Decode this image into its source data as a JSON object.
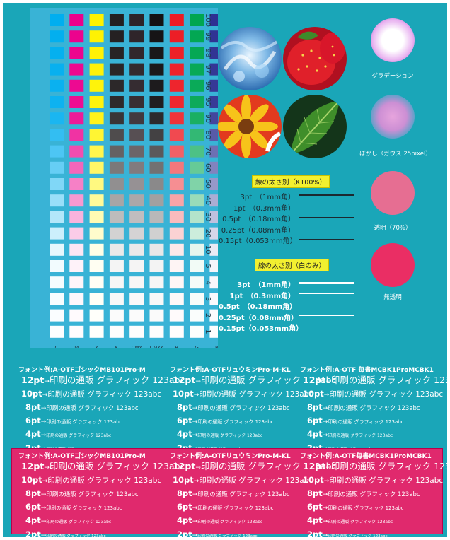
{
  "colors": {
    "background": "#1aa6b8",
    "chart_panel": "#39b3d6",
    "magenta_box": "#e0296d",
    "highlight_yellow": "#f2f030"
  },
  "swatch_chart": {
    "columns": [
      "C",
      "M",
      "Y",
      "K",
      "CMY",
      "CMYK",
      "R",
      "G",
      "B"
    ],
    "percentages": [
      "100",
      "99",
      "98",
      "97",
      "96",
      "95",
      "90",
      "80",
      "70",
      "60",
      "50",
      "40",
      "30",
      "20",
      "10",
      "5",
      "4",
      "3",
      "2",
      "1"
    ]
  },
  "photos": [
    {
      "icon": "water-splash-photo"
    },
    {
      "icon": "strawberry-photo"
    },
    {
      "icon": "daisy-flower-photo"
    },
    {
      "icon": "green-leaf-photo"
    }
  ],
  "effects": [
    {
      "label": "グラデーション"
    },
    {
      "label": "ぼかし（ガウス 25pixel）"
    },
    {
      "label": "透明（70%）"
    },
    {
      "label": "無透明"
    }
  ],
  "line_widths_k": {
    "title": "線の太さ別（K100%）",
    "rows": [
      {
        "label": "3pt　（1mm角）",
        "width_pt": 3
      },
      {
        "label": "1pt　（0.3mm角）",
        "width_pt": 1
      },
      {
        "label": "0.5pt　（0.18mm角）",
        "width_pt": 0.5
      },
      {
        "label": "0.25pt（0.08mm角）",
        "width_pt": 0.25
      },
      {
        "label": "0.15pt（0.053mm角）",
        "width_pt": 0.15
      }
    ]
  },
  "line_widths_white": {
    "title": "線の太さ別（白のみ）",
    "rows": [
      {
        "label": "3pt　（1mm角）",
        "width_pt": 3
      },
      {
        "label": "1pt　（0.3mm角）",
        "width_pt": 1
      },
      {
        "label": "0.5pt　（0.18mm角）",
        "width_pt": 0.5
      },
      {
        "label": "0.25pt（0.08mm角）",
        "width_pt": 0.25
      },
      {
        "label": "0.15pt（0.053mm角）",
        "width_pt": 0.15
      }
    ]
  },
  "font_samples": {
    "sample_text": "印刷の通販 グラフィック 123abc",
    "sizes": [
      {
        "pt_label": "12pt",
        "size": 12
      },
      {
        "pt_label": "10pt",
        "size": 10
      },
      {
        "pt_label": "8pt",
        "size": 8
      },
      {
        "pt_label": "6pt",
        "size": 6
      },
      {
        "pt_label": "4pt",
        "size": 4
      },
      {
        "pt_label": "2pt",
        "size": 2
      }
    ],
    "top_columns": [
      {
        "header": "フォント例:A-OTFゴシックMB101Pro-M"
      },
      {
        "header": "フォント例:A-OTFリュウミンPro-M-KL"
      },
      {
        "header": "フォント例:A-OTF 毎書MCBK1ProMCBK1"
      }
    ],
    "bottom_columns": [
      {
        "header": "フォント例:A-OTFゴシックMB101Pro-M"
      },
      {
        "header": "フォント例:A-OTFリュウミンPro-M-KL"
      },
      {
        "header": "フォント例:A-OTF毎書MCBK1ProMCBK1"
      }
    ]
  }
}
